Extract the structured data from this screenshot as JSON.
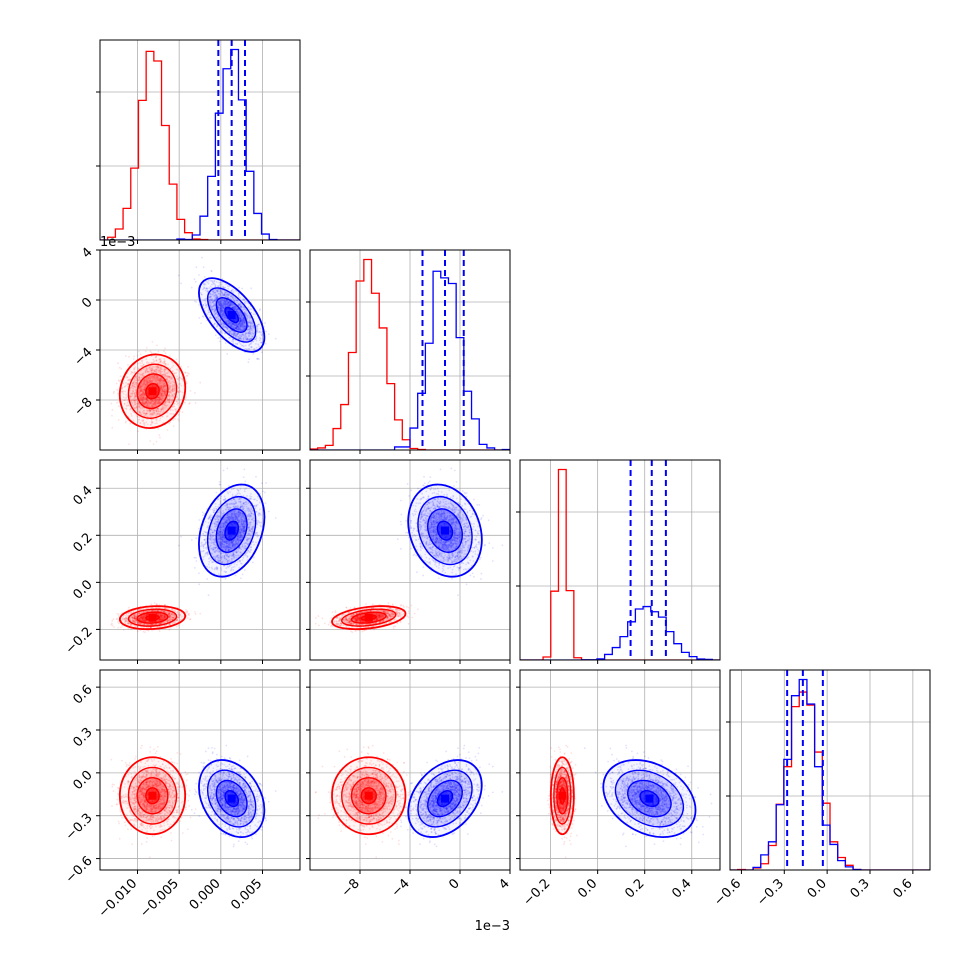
{
  "chart_data": {
    "type": "corner",
    "grid": true,
    "colors": {
      "sample_a": "#ff0000",
      "sample_b": "#0000ff",
      "quantiles": "#0000ff"
    },
    "parameters": [
      {
        "range": [
          -0.0145,
          0.0095
        ],
        "ticks": [
          -0.01,
          -0.005,
          0.0,
          0.005
        ],
        "tick_labels": [
          "−0.010",
          "−0.005",
          "0.000",
          "0.005"
        ],
        "offset_label": ""
      },
      {
        "range": [
          -0.012,
          0.004
        ],
        "ticks": [
          -0.008,
          -0.004,
          0.0,
          0.004
        ],
        "tick_labels": [
          "−8",
          "−4",
          "0",
          "4"
        ],
        "offset_label": "1e−3"
      },
      {
        "range": [
          -0.33,
          0.52
        ],
        "ticks": [
          -0.2,
          0.0,
          0.2,
          0.4
        ],
        "tick_labels": [
          "−0.2",
          "0.0",
          "0.2",
          "0.4"
        ],
        "offset_label": ""
      },
      {
        "range": [
          -0.68,
          0.72
        ],
        "ticks": [
          -0.6,
          -0.3,
          0.0,
          0.3,
          0.6
        ],
        "tick_labels": [
          "−0.6",
          "−0.3",
          "0.0",
          "0.3",
          "0.6"
        ],
        "offset_label": ""
      }
    ],
    "samples": [
      {
        "name": "",
        "color": "#ff0000",
        "mean": [
          -0.0082,
          -0.0073,
          -0.15,
          -0.16
        ],
        "std": [
          0.0016,
          0.0012,
          0.02,
          0.11
        ],
        "corr": [
          [
            1,
            0.1,
            0.15,
            0.0
          ],
          [
            0.1,
            1,
            0.35,
            0.0
          ],
          [
            0.15,
            0.35,
            1,
            0.0
          ],
          [
            0.0,
            0.0,
            0.0,
            1
          ]
        ],
        "quantiles": []
      },
      {
        "name": "",
        "color": "#0000ff",
        "mean": [
          0.0013,
          -0.0012,
          0.22,
          -0.18
        ],
        "std": [
          0.0016,
          0.0012,
          0.08,
          0.11
        ],
        "corr": [
          [
            1,
            -0.6,
            0.3,
            -0.3
          ],
          [
            -0.6,
            1,
            -0.2,
            0.35
          ],
          [
            0.3,
            -0.2,
            1,
            -0.3
          ],
          [
            -0.3,
            0.35,
            -0.3,
            1
          ]
        ],
        "quantiles": [
          [
            -0.0003,
            0.0013,
            0.0029
          ],
          [
            -0.003,
            -0.0012,
            0.0003
          ],
          [
            0.14,
            0.23,
            0.29
          ],
          [
            -0.28,
            -0.17,
            -0.03
          ]
        ]
      }
    ]
  }
}
